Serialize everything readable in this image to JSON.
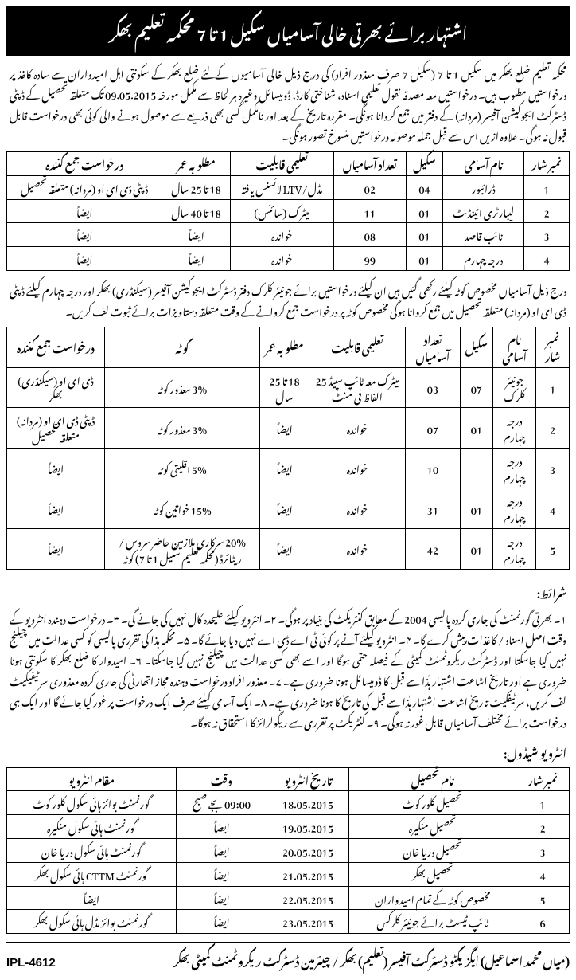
{
  "header": {
    "title": "اشتہار برائے بھرتی خالی آسامیاں سکیل 1 تا 7 محکمہ تعلیم بھکر"
  },
  "intro": "محکمہ تعلیم ضلع بھکر میں سکیل 1 تا 7 (سکیل 7 صرف معذور افراد) کی درج ذیل خالی آسامیوں کےلئے ضلع بھکر کے سکونتی اہل امیدواران سے سادہ کاغذ پر درخواستیں مطلوب ہیں۔ درخواستیں معہ مصدقہ نقول تعلیمی اسناد، شناختی کارڈ، ڈومیسائل وغیرہ ہر لحاظ سے مکمل مورخہ 09.05.2015 تک متعلقہ تحصیل کے ڈپٹی ڈسٹرکٹ ایجوکیشن آفیسر (مردانہ) کے دفتر میں جمع کروانا ہونگی۔ مقررہ تاریخ کے بعد اور نامکمل کسی بھی ذریعے سے موصول ہونے والی کوئی بھی درخواست قابل قبول نہ ہوگی۔ علاوہ ازیں اس سے قبل جملہ موصولہ درخواستیں منسوخ تصور ہونگی۔",
  "table1": {
    "headers": [
      "نمبر شار",
      "نام آسامی",
      "سکیل",
      "تعداد آسامیاں",
      "تعلیمی قابلیت",
      "مطلوبہ عمر",
      "درخواست جمع کنندہ"
    ],
    "rows": [
      [
        "1",
        "ڈرائیور",
        "04",
        "02",
        "مڈل/LTV لائسنس یافتہ",
        "18 تا 25 سال",
        "ڈپٹی ڈی ای او (مردانہ) متعلقہ تحصیل"
      ],
      [
        "2",
        "لیبارٹری اٹینڈنٹ",
        "01",
        "11",
        "میٹرک (سائنس)",
        "18 تا 40 سال",
        "ایضاً"
      ],
      [
        "3",
        "نائب قاصد",
        "01",
        "08",
        "خواندہ",
        "ایضاً",
        "ایضاً"
      ],
      [
        "4",
        "درجہ چہارم",
        "01",
        "99",
        "خواندہ",
        "ایضاً",
        "ایضاً"
      ]
    ]
  },
  "section2_text": "درج ذیل آسامیاں مخصوص کوٹہ کیلئے رکھی گئیں ہیں ان کیلئے درخواستیں برائے جونیئر کلرک دفتر ڈسٹرکٹ ایجوکیشن آفیسر (سیکنڈری) بھکر اور درجہ چہارم کیلئے ڈپٹی ڈی ای او (مردانہ) متعلقہ تحصیل میں جمع کروانا ہوگی مخصوص کوٹہ پر درخواست جمع کروانے کے وقت متعلقہ دستاویزات برائے ثبوت لف کریں۔",
  "table2": {
    "headers": [
      "نمبر شار",
      "نام آسامی",
      "سکیل",
      "تعداد آسامیاں",
      "تعلیمی قابلیت",
      "مطلوبہ عمر",
      "کوٹہ",
      "درخواست جمع کنندہ"
    ],
    "rows": [
      [
        "1",
        "جونیئر کلرک",
        "07",
        "03",
        "میٹرک معہ ٹائپ سپیڈ 25 الفاظ فی منٹ",
        "18 تا 25 سال",
        "3% معذور کوٹہ",
        "ڈی ای او (سیکنڈری) بھکر"
      ],
      [
        "2",
        "درجہ چہارم",
        "01",
        "07",
        "خواندہ",
        "ایضاً",
        "3% معذور کوٹہ",
        "ڈپٹی ڈی ای او (مردانہ) متعلقہ تحصیل"
      ],
      [
        "3",
        "درجہ چہارم",
        "",
        "10",
        "خواندہ",
        "ایضاً",
        "5% اقلیتی کوٹہ",
        "ایضاً"
      ],
      [
        "4",
        "درجہ چہارم",
        "01",
        "31",
        "خواندہ",
        "ایضاً",
        "15% خواتین کوٹہ",
        "ایضاً"
      ],
      [
        "5",
        "درجہ چہارم",
        "01",
        "42",
        "خواندہ",
        "ایضاً",
        "20% سرکاری ملازمین حاضر سروس / ریٹائرڈ (محکمہ تعلیم سکیل 1 تا 7) کوٹہ",
        "ایضاً"
      ]
    ]
  },
  "conditions_title": "شرائط:",
  "conditions": "۱۔ بھرتی گورنمنٹ کی جاری کردہ پالیسی 2004 کے مطابق کنٹریکٹ کی بنیاد پر ہوگی۔ ۲۔ انٹرویو کیلئے علیحدہ کال نہیں کی جائے گی۔ ۳۔ درخواست دہندہ انٹرویو کے وقت اصل اسناد / کاغذات پیش کرے گا۔ ۴۔ انٹرویو کیلئے آنے پر کوئی ٹی اے ڈی اے نہیں دیا جائے گا۔ ۵۔ محکمہ ہٰذا کی تقرری پالیسی کو کسی عدالت میں چیلنج نہیں کیا جاسکتا اور ڈسٹرکٹ ریکروٹمنٹ کمیٹی کے فیصلہ حتمی ہوگا اور اسے بھی کسی عدالت میں چیلنج نہیں کیا جاسکتا۔ ۶۔ امیدوار کا ضلع بھکر کا سکونتی ہونا ضروری ہے اور تاریخ اشاعت اشتہار ہٰذا سے قبل کا ڈومیسائل ہونا ضروری ہے۔ ۷۔ معذور افراد درخواست دہندہ مجاز اتھارٹی کی جاری کردہ معذوری سرٹیفیکیٹ لف کریں، سرٹیفکیٹ تاریخ اشاعت اشتہار ہٰذا سے قبل کی تاریخ کا ہونا ضروری ہے۔ ۸۔ ایک آسامی کیلئے صرف ایک درخواست پر غور کیا جائے گا اور ایک ہی درخواست برائے مختلف آسامیاں قابل غور نہ ہوگی۔ ۹۔ کنٹریکٹ پر تقرری سے ریگولرائز کا استحقاق نہ ہوگا۔",
  "schedule_title": "انٹرویو شیڈول:",
  "table3": {
    "headers": [
      "نمبر شار",
      "نام تحصیل",
      "تاریخ انٹرویو",
      "وقت",
      "مقام انٹرویو"
    ],
    "rows": [
      [
        "1",
        "تحصیل کلور کوٹ",
        "18.05.2015",
        "09:00 بجے صبح",
        "گورنمنٹ بوائز ہائی سکول کلور کوٹ"
      ],
      [
        "2",
        "تحصیل منکیرہ",
        "19.05.2015",
        "ایضاً",
        "گورنمنٹ ہائی سکول منکیرہ"
      ],
      [
        "3",
        "تحصیل دریا خان",
        "20.05.2015",
        "ایضاً",
        "گورنمنٹ ہائی سکول دریا خان"
      ],
      [
        "4",
        "تحصیل بھکر",
        "21.05.2015",
        "ایضاً",
        "گورنمنٹ CTTM ہائی سکول بھکر"
      ],
      [
        "5",
        "مخصوص کوٹہ کے تمام امیدواران",
        "22.05.2015",
        "ایضاً",
        "ایضاً"
      ],
      [
        "6",
        "ٹائپ ٹیسٹ برائے جونیئر کلرکس",
        "23.05.2015",
        "ایضاً",
        "گورنمنٹ بوائز مڈل ہائی سکول بھکر"
      ]
    ]
  },
  "footer": {
    "right": "(میاں محمد اسماعیل)  ایگزیکٹو ڈسٹرکٹ آفیسر (تعلیم) بھکر / چیئرمین ڈسٹرکٹ ریکروٹمنٹ کمیٹی بھکر",
    "left": "IPL-4612"
  }
}
